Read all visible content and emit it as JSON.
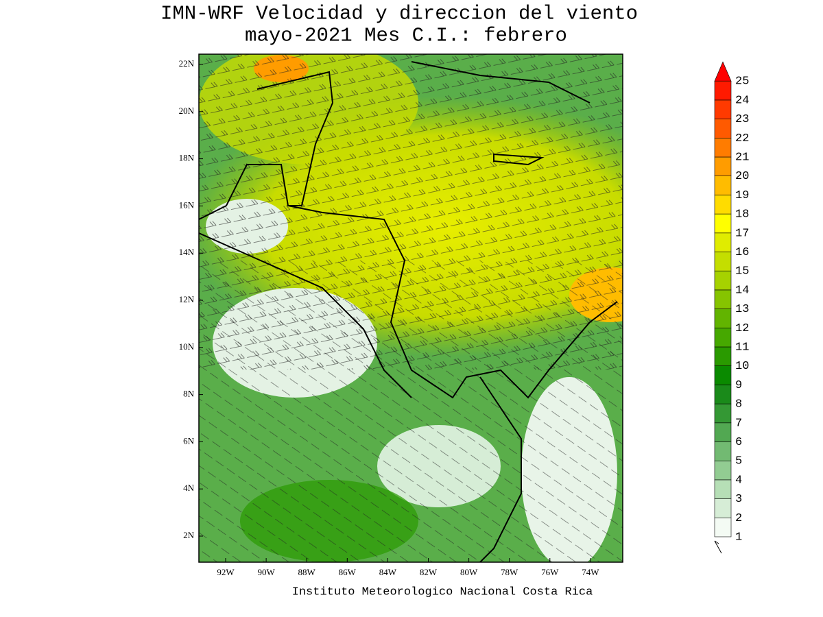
{
  "title": "IMN-WRF Velocidad y direccion del viento",
  "subtitle": "mayo-2021 Mes C.I.: febrero",
  "lat_labels": [
    "22N",
    "20N",
    "18N",
    "16N",
    "14N",
    "12N",
    "10N",
    "8N",
    "6N",
    "4N",
    "2N"
  ],
  "lon_labels": [
    "92W",
    "90W",
    "88W",
    "86W",
    "84W",
    "82W",
    "80W",
    "78W",
    "76W",
    "74W"
  ],
  "colorbar": {
    "levels": [
      1,
      2,
      3,
      4,
      5,
      6,
      7,
      8,
      9,
      10,
      11,
      12,
      13,
      14,
      15,
      16,
      17,
      18,
      19,
      20,
      21,
      22,
      23,
      24,
      25
    ],
    "colors": [
      "#f4fbf4",
      "#d6edd6",
      "#b6dfb6",
      "#92cc92",
      "#72ba72",
      "#52a852",
      "#349834",
      "#1a8a1a",
      "#0a8a00",
      "#2a9a00",
      "#46a800",
      "#62b400",
      "#86c400",
      "#a6d200",
      "#c4de00",
      "#e0ec00",
      "#ffff00",
      "#ffdc00",
      "#ffbc00",
      "#ff9c00",
      "#ff7c00",
      "#ff5a00",
      "#ff3a00",
      "#ff1a00",
      "#ff0000"
    ]
  },
  "credit": "Instituto Meteorologico Nacional Costa Rica"
}
